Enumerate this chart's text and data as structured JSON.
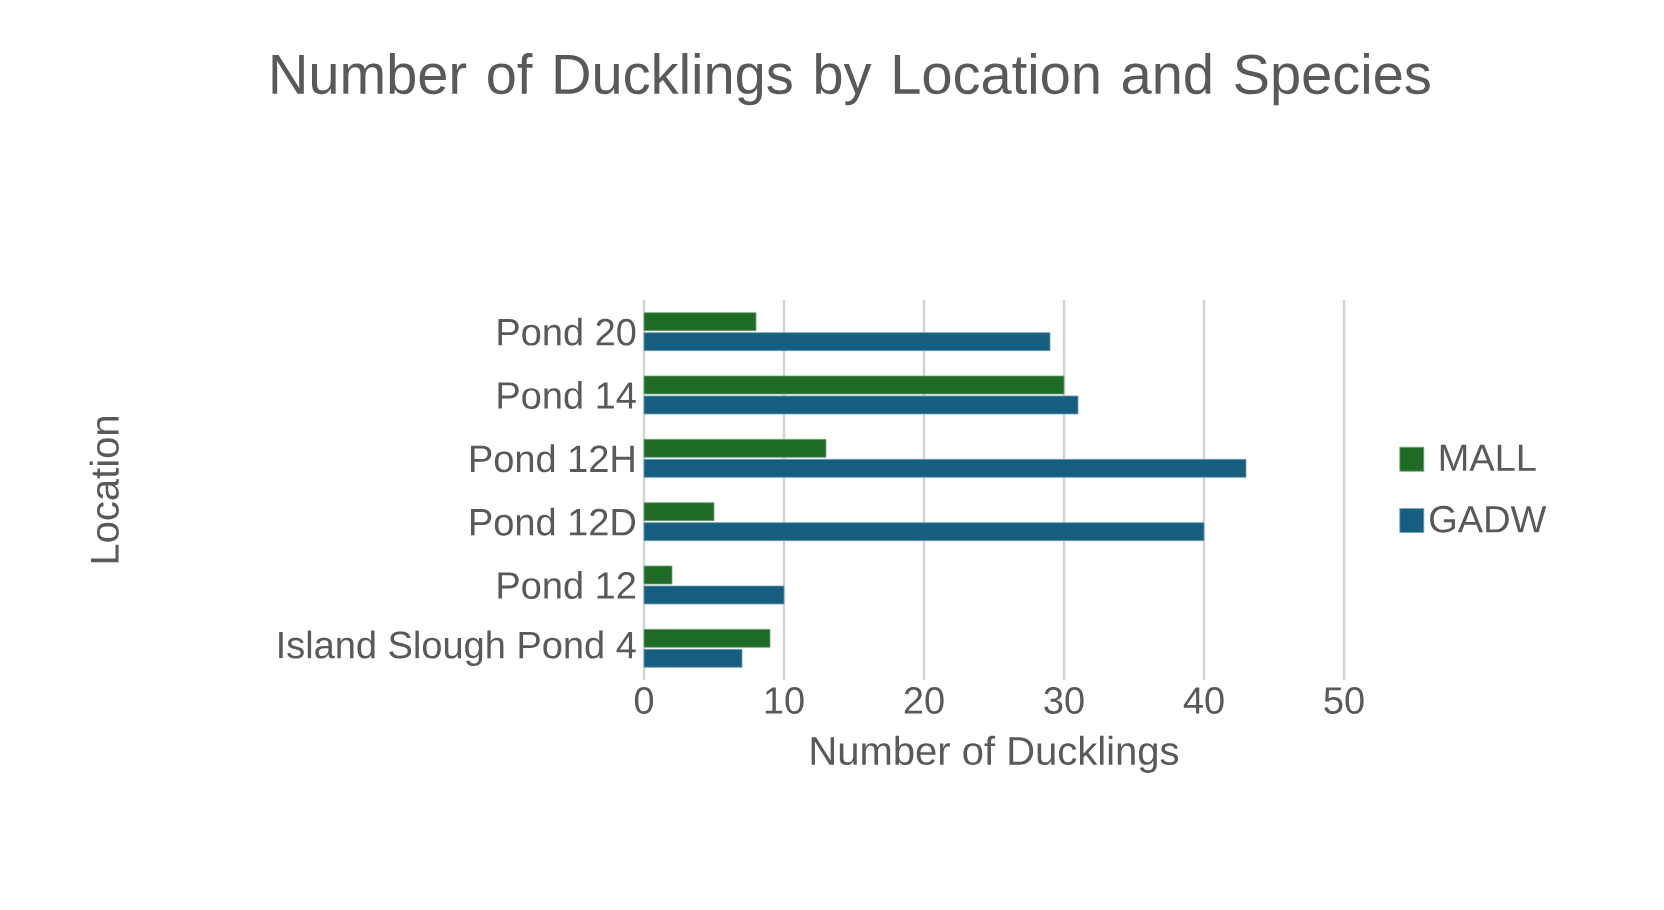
{
  "chart_data": {
    "type": "bar",
    "orientation": "horizontal",
    "title": "Number of Ducklings by Location and Species",
    "xlabel": "Number of Ducklings",
    "ylabel": "Location",
    "categories": [
      "Pond 20",
      "Pond 14",
      "Pond 12H",
      "Pond 12D",
      "Pond 12",
      "Island Slough Pond 4"
    ],
    "series": [
      {
        "name": "MALL",
        "color": "#1e6b26",
        "values": [
          8,
          30,
          13,
          5,
          2,
          9
        ]
      },
      {
        "name": "GADW",
        "color": "#165e80",
        "values": [
          29,
          31,
          43,
          40,
          10,
          7
        ]
      }
    ],
    "xlim": [
      0,
      50
    ],
    "xticks": [
      0,
      10,
      20,
      30,
      40,
      50
    ],
    "grid": "x",
    "legend": "right"
  }
}
